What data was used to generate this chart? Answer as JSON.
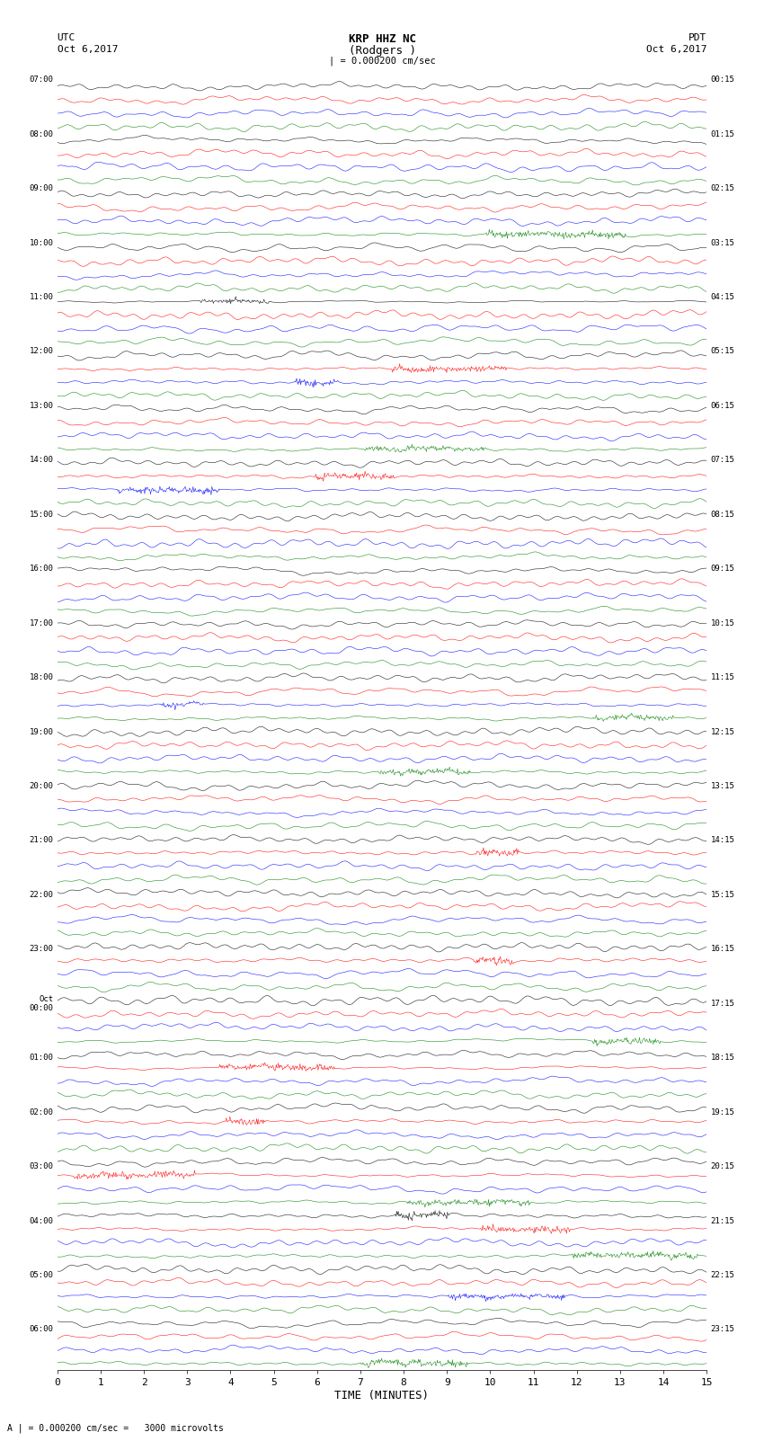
{
  "title_line1": "KRP HHZ NC",
  "title_line2": "(Rodgers )",
  "left_label_line1": "UTC",
  "left_label_line2": "Oct 6,2017",
  "right_label_line1": "PDT",
  "right_label_line2": "Oct 6,2017",
  "scale_label": "| = 0.000200 cm/sec",
  "bottom_note": "A | = 0.000200 cm/sec =   3000 microvolts",
  "xlabel": "TIME (MINUTES)",
  "xticks": [
    0,
    1,
    2,
    3,
    4,
    5,
    6,
    7,
    8,
    9,
    10,
    11,
    12,
    13,
    14,
    15
  ],
  "bg_color": "#ffffff",
  "trace_colors": [
    "black",
    "red",
    "blue",
    "green"
  ],
  "num_rows": 96,
  "left_times": [
    "07:00",
    "",
    "",
    "",
    "08:00",
    "",
    "",
    "",
    "09:00",
    "",
    "",
    "",
    "10:00",
    "",
    "",
    "",
    "11:00",
    "",
    "",
    "",
    "12:00",
    "",
    "",
    "",
    "13:00",
    "",
    "",
    "",
    "14:00",
    "",
    "",
    "",
    "15:00",
    "",
    "",
    "",
    "16:00",
    "",
    "",
    "",
    "17:00",
    "",
    "",
    "",
    "18:00",
    "",
    "",
    "",
    "19:00",
    "",
    "",
    "",
    "20:00",
    "",
    "",
    "",
    "21:00",
    "",
    "",
    "",
    "22:00",
    "",
    "",
    "",
    "23:00",
    "",
    "",
    "",
    "Oct\n00:00",
    "",
    "",
    "",
    "01:00",
    "",
    "",
    "",
    "02:00",
    "",
    "",
    "",
    "03:00",
    "",
    "",
    "",
    "04:00",
    "",
    "",
    "",
    "05:00",
    "",
    "",
    "",
    "06:00",
    "",
    "",
    ""
  ],
  "right_times": [
    "00:15",
    "",
    "",
    "",
    "01:15",
    "",
    "",
    "",
    "02:15",
    "",
    "",
    "",
    "03:15",
    "",
    "",
    "",
    "04:15",
    "",
    "",
    "",
    "05:15",
    "",
    "",
    "",
    "06:15",
    "",
    "",
    "",
    "07:15",
    "",
    "",
    "",
    "08:15",
    "",
    "",
    "",
    "09:15",
    "",
    "",
    "",
    "10:15",
    "",
    "",
    "",
    "11:15",
    "",
    "",
    "",
    "12:15",
    "",
    "",
    "",
    "13:15",
    "",
    "",
    "",
    "14:15",
    "",
    "",
    "",
    "15:15",
    "",
    "",
    "",
    "16:15",
    "",
    "",
    "",
    "17:15",
    "",
    "",
    "",
    "18:15",
    "",
    "",
    "",
    "19:15",
    "",
    "",
    "",
    "20:15",
    "",
    "",
    "",
    "21:15",
    "",
    "",
    "",
    "22:15",
    "",
    "",
    "",
    "23:15",
    "",
    "",
    ""
  ]
}
